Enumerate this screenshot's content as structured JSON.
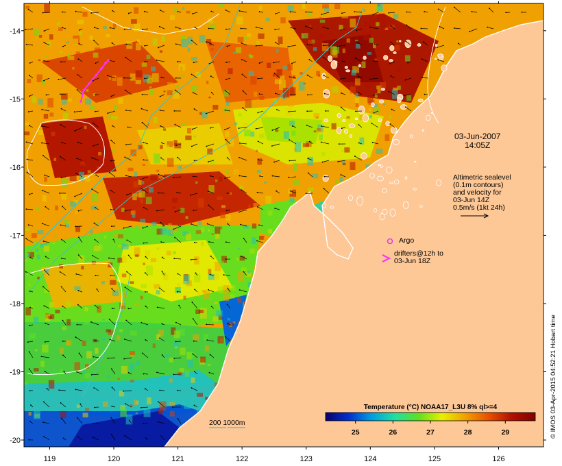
{
  "map": {
    "lon_range": [
      118.6,
      126.7
    ],
    "lat_range": [
      -20.1,
      -13.6
    ],
    "x_ticks": [
      "119",
      "120",
      "121",
      "122",
      "123",
      "124",
      "125",
      "126"
    ],
    "y_ticks": [
      "-14",
      "-15",
      "-16",
      "-17",
      "-18",
      "-19",
      "-20"
    ],
    "colors": {
      "land": "#fdc896",
      "coast": "#ffffff",
      "depth_200m": "#40c0c0",
      "sealevel_contour": "#ffffff",
      "vectors": "#000000",
      "argo": "#e040e0",
      "drifter": "#ff30ff"
    }
  },
  "annotations": {
    "datetime_line1": "03-Jun-2007",
    "datetime_line2": "14:05Z",
    "legend_lines": [
      "Altimetric sealevel",
      "(0.1m contours)",
      "and velocity for",
      "03-Jun 14Z",
      "0.5m/s (1kt 24h)"
    ],
    "argo_label": "Argo",
    "drifters_line1": "drifters@12h to",
    "drifters_line2": "03-Jun 18Z",
    "depth_label": "200  1000m"
  },
  "colorbar": {
    "title": "Temperature (°C) NOAA17_L3U 8% ql>=4",
    "ticks": [
      "25",
      "26",
      "27",
      "28",
      "29"
    ],
    "range": [
      24.2,
      29.8
    ],
    "stops": [
      "#08006a",
      "#0030d0",
      "#00a0e0",
      "#20e0a0",
      "#60e020",
      "#e8f000",
      "#f0a000",
      "#e85000",
      "#b01000",
      "#800000"
    ]
  },
  "credit": "© IMOS 03-Apr-2015 04:52:21 Hobart time"
}
